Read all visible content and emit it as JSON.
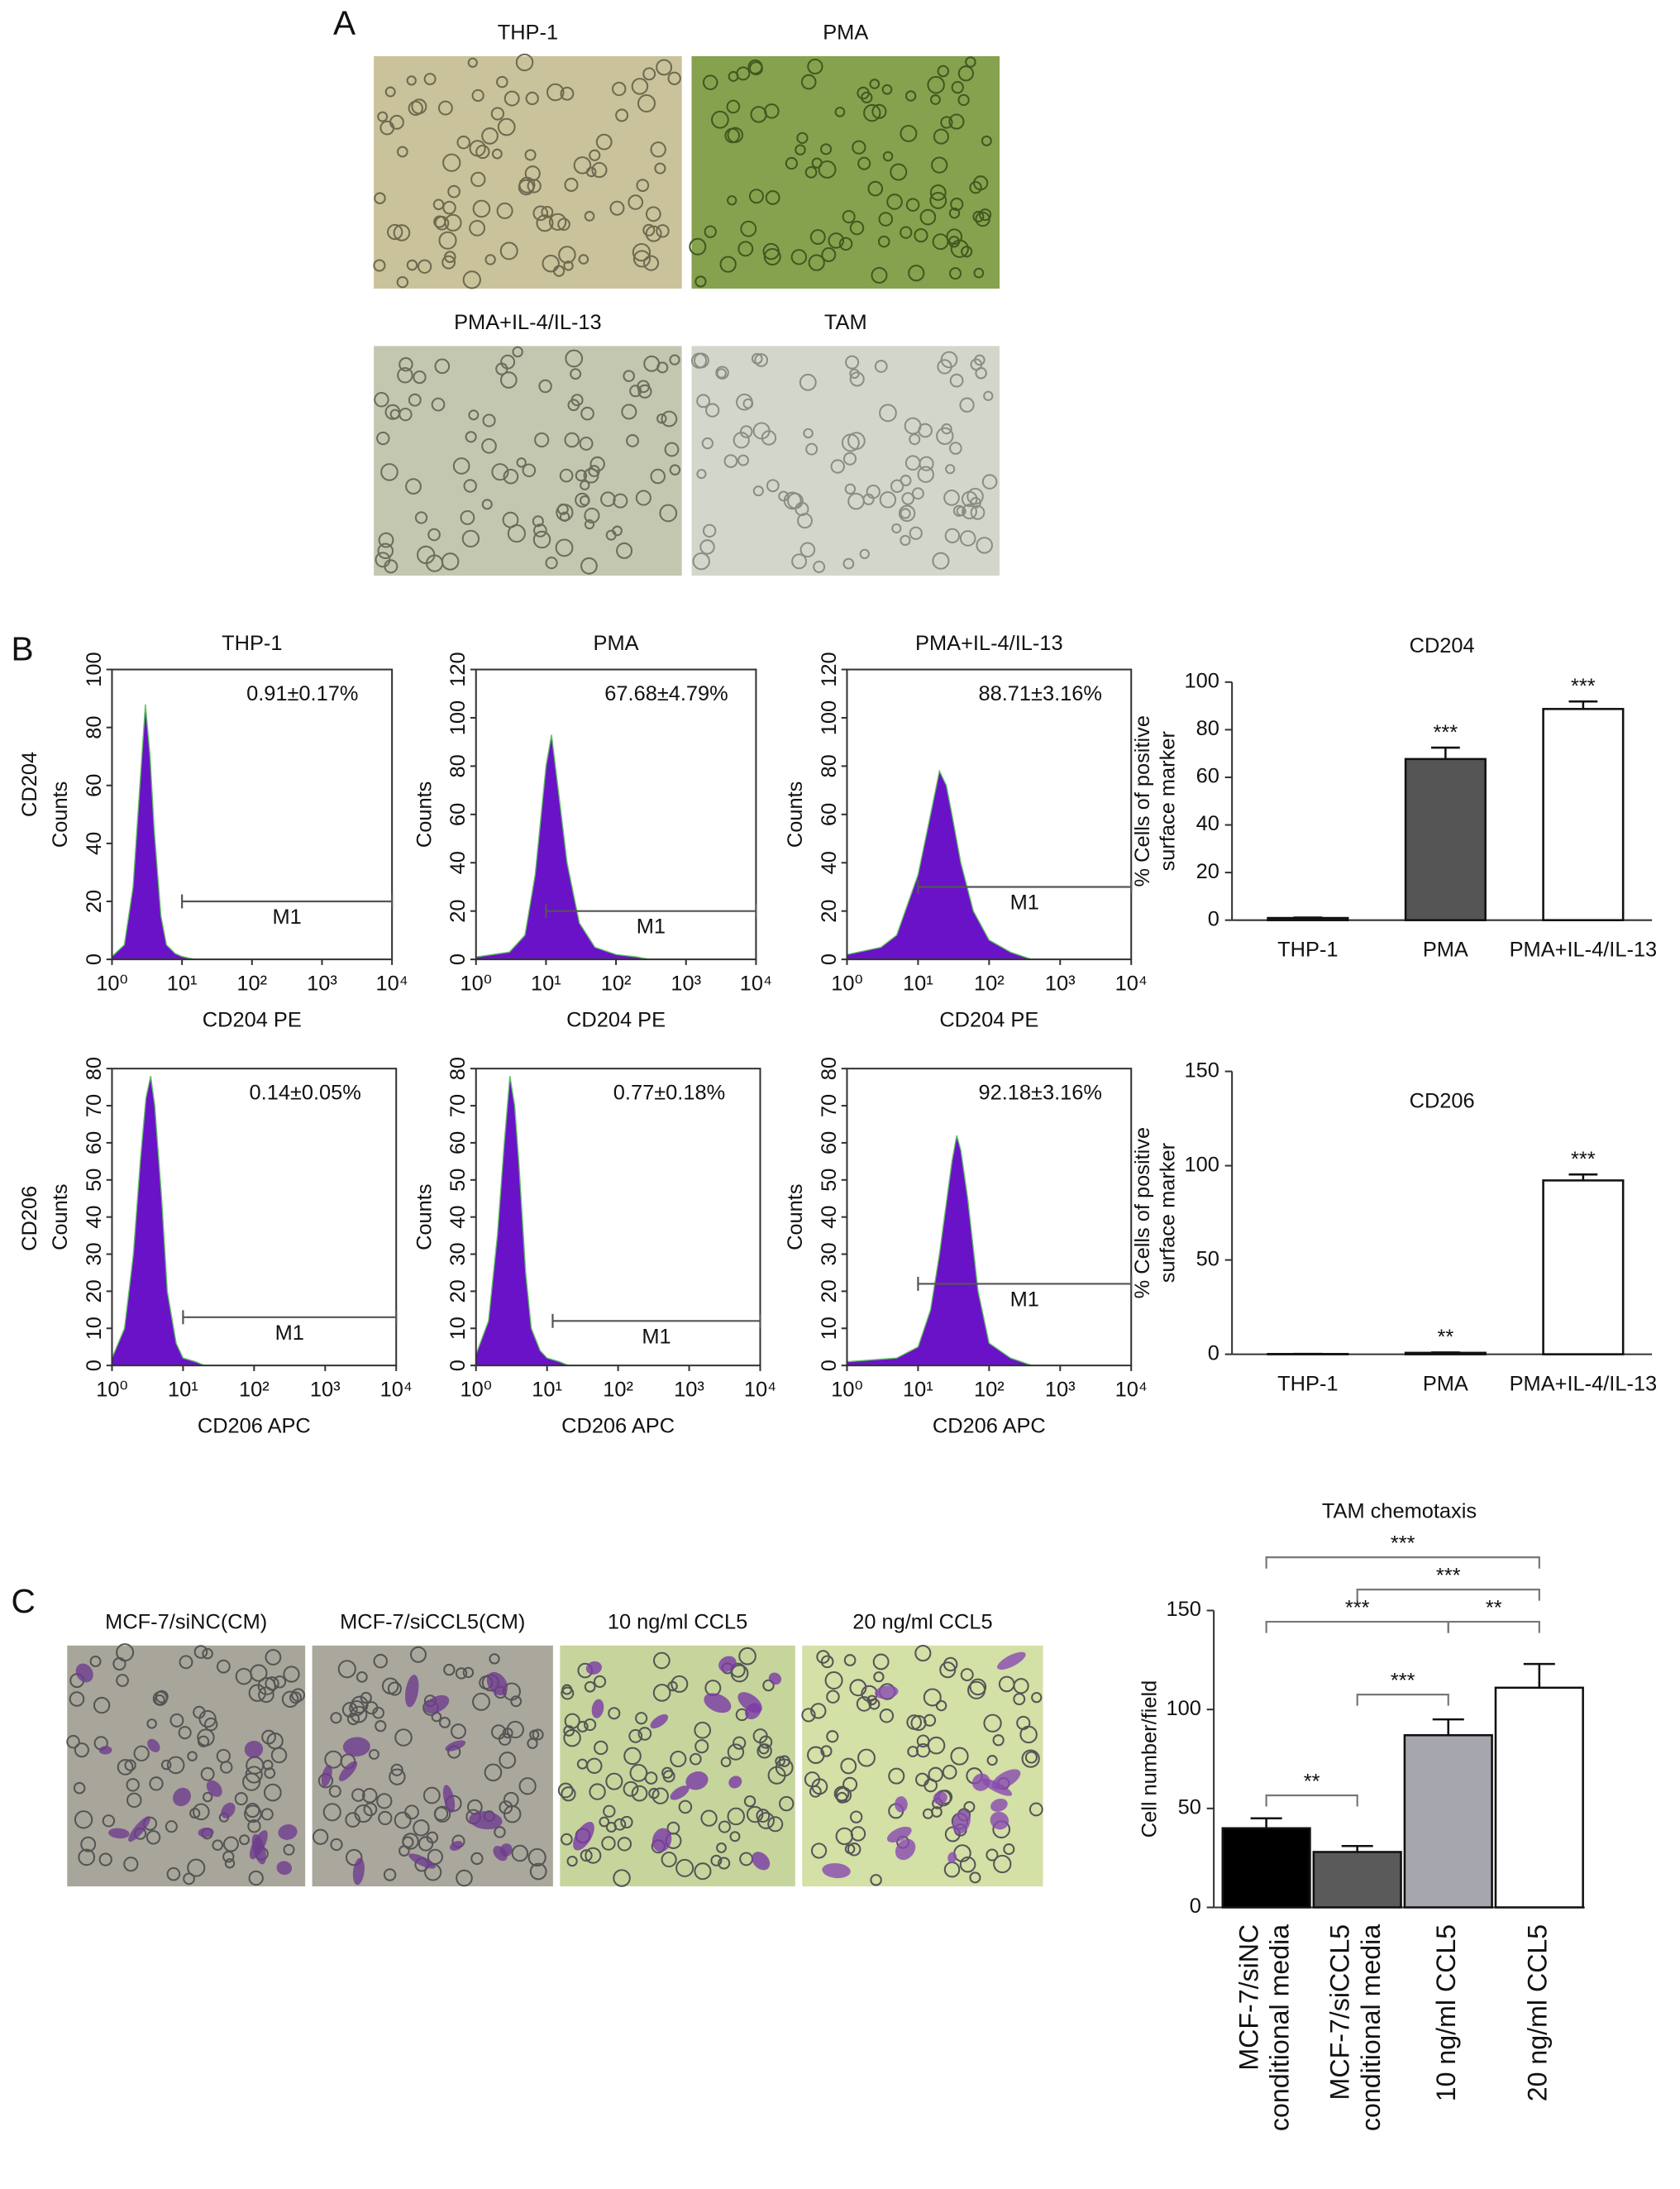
{
  "panels": {
    "a": "A",
    "b": "B",
    "c": "C"
  },
  "micrographs_a": [
    "THP-1",
    "PMA",
    "PMA+IL-4/IL-13",
    "TAM"
  ],
  "row_labels": [
    "CD204",
    "CD206"
  ],
  "micrographs_c": [
    "MCF-7/siNC(CM)",
    "MCF-7/siCCL5(CM)",
    "10 ng/ml CCL5",
    "20 ng/ml CCL5"
  ],
  "chart_data": [
    {
      "type": "area",
      "title": "THP-1",
      "xlabel": "CD204 PE",
      "ylabel": "Counts",
      "annotation": "0.91±0.17%",
      "log_x": true,
      "color": "#6a12c8",
      "x": [
        1,
        1.5,
        2,
        2.5,
        3,
        3.5,
        4,
        5,
        6,
        8,
        10,
        15,
        20
      ],
      "values": [
        1,
        5,
        25,
        60,
        88,
        70,
        45,
        15,
        5,
        2,
        1,
        0,
        0
      ],
      "xlim": [
        1,
        10000
      ],
      "xticks": [
        {
          "value": 1,
          "label": "10⁰"
        },
        {
          "value": 10,
          "label": "10¹"
        },
        {
          "value": 100,
          "label": "10²"
        },
        {
          "value": 1000,
          "label": "10³"
        },
        {
          "value": 10000,
          "label": "10⁴"
        }
      ],
      "ylim": [
        0,
        100
      ],
      "yticks": [
        0,
        20,
        40,
        60,
        80,
        100
      ],
      "gate": {
        "label": "M1",
        "range": [
          10,
          10000
        ],
        "y": 20
      }
    },
    {
      "type": "area",
      "title": "PMA",
      "xlabel": "CD204 PE",
      "ylabel": "Counts",
      "annotation": "67.68±4.79%",
      "log_x": true,
      "color": "#6a12c8",
      "x": [
        1,
        3,
        5,
        7,
        10,
        12,
        15,
        20,
        30,
        50,
        100,
        200,
        300
      ],
      "values": [
        1,
        3,
        10,
        35,
        80,
        93,
        70,
        40,
        15,
        5,
        2,
        1,
        0
      ],
      "xlim": [
        1,
        10000
      ],
      "xticks": [
        {
          "value": 1,
          "label": "10⁰"
        },
        {
          "value": 10,
          "label": "10¹"
        },
        {
          "value": 100,
          "label": "10²"
        },
        {
          "value": 1000,
          "label": "10³"
        },
        {
          "value": 10000,
          "label": "10⁴"
        }
      ],
      "ylim": [
        0,
        120
      ],
      "yticks": [
        0,
        20,
        40,
        60,
        80,
        100,
        120
      ],
      "gate": {
        "label": "M1",
        "range": [
          10,
          10000
        ],
        "y": 20
      }
    },
    {
      "type": "area",
      "title": "PMA+IL-4/IL-13",
      "xlabel": "CD204 PE",
      "ylabel": "Counts",
      "annotation": "88.71±3.16%",
      "log_x": true,
      "color": "#6a12c8",
      "x": [
        1,
        3,
        5,
        10,
        15,
        20,
        25,
        30,
        40,
        60,
        100,
        200,
        400
      ],
      "values": [
        2,
        5,
        10,
        35,
        60,
        78,
        72,
        60,
        40,
        20,
        8,
        3,
        0
      ],
      "xlim": [
        1,
        10000
      ],
      "xticks": [
        {
          "value": 1,
          "label": "10⁰"
        },
        {
          "value": 10,
          "label": "10¹"
        },
        {
          "value": 100,
          "label": "10²"
        },
        {
          "value": 1000,
          "label": "10³"
        },
        {
          "value": 10000,
          "label": "10⁴"
        }
      ],
      "ylim": [
        0,
        120
      ],
      "yticks": [
        0,
        20,
        40,
        60,
        80,
        100,
        120
      ],
      "gate": {
        "label": "M1",
        "range": [
          10,
          10000
        ],
        "y": 30
      }
    },
    {
      "type": "area",
      "xlabel": "CD206 APC",
      "ylabel": "Counts",
      "annotation": "0.14±0.05%",
      "log_x": true,
      "color": "#6a12c8",
      "x": [
        1,
        1.5,
        2,
        2.5,
        3,
        3.5,
        4,
        5,
        6,
        8,
        10,
        15,
        20
      ],
      "values": [
        2,
        10,
        30,
        55,
        72,
        78,
        70,
        45,
        20,
        6,
        2,
        1,
        0
      ],
      "xlim": [
        1,
        10000
      ],
      "xticks": [
        {
          "value": 1,
          "label": "10⁰"
        },
        {
          "value": 10,
          "label": "10¹"
        },
        {
          "value": 100,
          "label": "10²"
        },
        {
          "value": 1000,
          "label": "10³"
        },
        {
          "value": 10000,
          "label": "10⁴"
        }
      ],
      "ylim": [
        0,
        80
      ],
      "yticks": [
        0,
        10,
        20,
        30,
        40,
        50,
        60,
        70,
        80
      ],
      "gate": {
        "label": "M1",
        "range": [
          10,
          10000
        ],
        "y": 13
      }
    },
    {
      "type": "area",
      "xlabel": "CD206 APC",
      "ylabel": "Counts",
      "annotation": "0.77±0.18%",
      "log_x": true,
      "color": "#6a12c8",
      "x": [
        1,
        1.5,
        2,
        2.5,
        3,
        3.5,
        4,
        5,
        6,
        8,
        10,
        15,
        20
      ],
      "values": [
        3,
        12,
        35,
        60,
        78,
        70,
        55,
        25,
        10,
        4,
        2,
        1,
        0
      ],
      "xlim": [
        1,
        10000
      ],
      "xticks": [
        {
          "value": 1,
          "label": "10⁰"
        },
        {
          "value": 10,
          "label": "10¹"
        },
        {
          "value": 100,
          "label": "10²"
        },
        {
          "value": 1000,
          "label": "10³"
        },
        {
          "value": 10000,
          "label": "10⁴"
        }
      ],
      "ylim": [
        0,
        80
      ],
      "yticks": [
        0,
        10,
        20,
        30,
        40,
        50,
        60,
        70,
        80
      ],
      "gate": {
        "label": "M1",
        "range": [
          12,
          10000
        ],
        "y": 12
      }
    },
    {
      "type": "area",
      "xlabel": "CD206 APC",
      "ylabel": "Counts",
      "annotation": "92.18±3.16%",
      "log_x": true,
      "color": "#6a12c8",
      "x": [
        1,
        5,
        10,
        15,
        20,
        30,
        35,
        40,
        50,
        70,
        100,
        200,
        400
      ],
      "values": [
        1,
        2,
        5,
        15,
        30,
        55,
        62,
        58,
        45,
        20,
        6,
        2,
        0
      ],
      "xlim": [
        1,
        10000
      ],
      "xticks": [
        {
          "value": 1,
          "label": "10⁰"
        },
        {
          "value": 10,
          "label": "10¹"
        },
        {
          "value": 100,
          "label": "10²"
        },
        {
          "value": 1000,
          "label": "10³"
        },
        {
          "value": 10000,
          "label": "10⁴"
        }
      ],
      "ylim": [
        0,
        80
      ],
      "yticks": [
        0,
        10,
        20,
        30,
        40,
        50,
        60,
        70,
        80
      ],
      "gate": {
        "label": "M1",
        "range": [
          10,
          10000
        ],
        "y": 22
      }
    },
    {
      "type": "bar",
      "title": "CD204",
      "ylabel": [
        "% Cells of positive",
        "surface marker"
      ],
      "categories": [
        "THP-1",
        "PMA",
        "PMA+IL-4/IL-13"
      ],
      "values": [
        0.91,
        67.68,
        88.71
      ],
      "errors": [
        0.17,
        4.79,
        3.16
      ],
      "colors": [
        "#555555",
        "#555555",
        "#ffffff"
      ],
      "ylim": [
        0,
        100
      ],
      "yticks": [
        0,
        20,
        40,
        60,
        80,
        100
      ],
      "significance": [
        {
          "index": 1,
          "label": "***"
        },
        {
          "index": 2,
          "label": "***"
        }
      ]
    },
    {
      "type": "bar",
      "title": "CD206",
      "ylabel": [
        "% Cells of positive",
        "surface marker"
      ],
      "categories": [
        "THP-1",
        "PMA",
        "PMA+IL-4/IL-13"
      ],
      "values": [
        0.14,
        0.77,
        92.18
      ],
      "errors": [
        0.05,
        0.18,
        3.16
      ],
      "colors": [
        "#555555",
        "#555555",
        "#ffffff"
      ],
      "ylim": [
        0,
        150
      ],
      "yticks": [
        0,
        50,
        100,
        150
      ],
      "significance": [
        {
          "index": 1,
          "label": "**"
        },
        {
          "index": 2,
          "label": "***"
        }
      ]
    },
    {
      "type": "bar",
      "title": "TAM chemotaxis",
      "ylabel": [
        "Cell number/field"
      ],
      "categories": [
        [
          "MCF-7/siNC",
          "conditional media"
        ],
        [
          "MCF-7/siCCL5",
          "conditional media"
        ],
        [
          "10 ng/ml CCL5"
        ],
        [
          "20 ng/ml CCL5"
        ]
      ],
      "values": [
        40,
        28,
        87,
        111
      ],
      "errors": [
        5,
        3,
        8,
        12
      ],
      "colors": [
        "#000000",
        "#5a5a5a",
        "#a6a6ae",
        "#ffffff"
      ],
      "ylim": [
        0,
        150
      ],
      "yticks": [
        0,
        50,
        100,
        150
      ],
      "brackets": [
        {
          "between": [
            0,
            1
          ],
          "label": "**"
        },
        {
          "between": [
            1,
            2
          ],
          "label": "***"
        },
        {
          "between": [
            0,
            2
          ],
          "label": "***"
        },
        {
          "between": [
            2,
            3
          ],
          "label": "**"
        },
        {
          "between": [
            1,
            3
          ],
          "label": "***"
        },
        {
          "between": [
            0,
            3
          ],
          "label": "***"
        }
      ]
    }
  ]
}
